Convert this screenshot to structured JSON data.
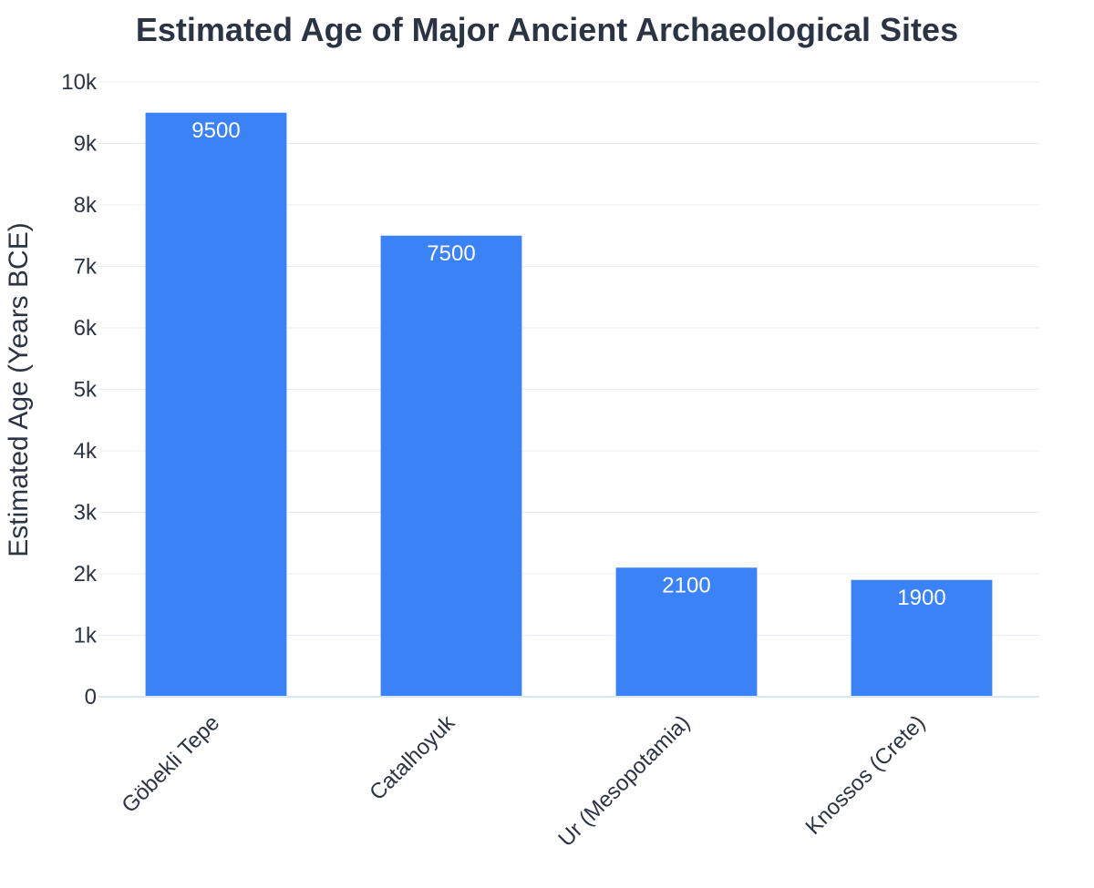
{
  "chart_data": {
    "type": "bar",
    "title": "Estimated Age of Major Ancient Archaeological Sites",
    "xlabel": "",
    "ylabel": "Estimated Age (Years BCE)",
    "categories": [
      "Göbekli Tepe",
      "Catalhoyuk",
      "Ur (Mesopotamia)",
      "Knossos (Crete)"
    ],
    "values": [
      9500,
      7500,
      2100,
      1900
    ],
    "data_labels": [
      "9500",
      "7500",
      "2100",
      "1900"
    ],
    "ylim": [
      0,
      10000
    ],
    "yticks": [
      0,
      1000,
      2000,
      3000,
      4000,
      5000,
      6000,
      7000,
      8000,
      9000,
      10000
    ],
    "ytick_labels": [
      "0",
      "1k",
      "2k",
      "3k",
      "4k",
      "5k",
      "6k",
      "7k",
      "8k",
      "9k",
      "10k"
    ],
    "grid": true,
    "legend": "none",
    "bar_color": "#3b82f6"
  }
}
